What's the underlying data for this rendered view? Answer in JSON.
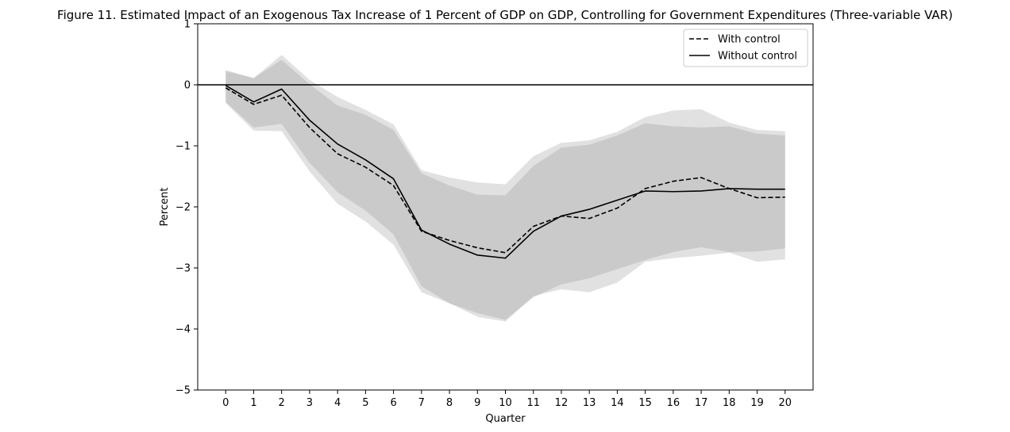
{
  "chart_data": {
    "type": "line",
    "title": "Figure 11. Estimated Impact of an Exogenous Tax Increase of 1 Percent of GDP on GDP, Controlling for Government Expenditures (Three-variable VAR)",
    "xlabel": "Quarter",
    "ylabel": "Percent",
    "xlim": [
      -1,
      21
    ],
    "ylim": [
      -5,
      1
    ],
    "x": [
      0,
      1,
      2,
      3,
      4,
      5,
      6,
      7,
      8,
      9,
      10,
      11,
      12,
      13,
      14,
      15,
      16,
      17,
      18,
      19,
      20
    ],
    "x_ticks": [
      "0",
      "1",
      "2",
      "3",
      "4",
      "5",
      "6",
      "7",
      "8",
      "9",
      "10",
      "11",
      "12",
      "13",
      "14",
      "15",
      "16",
      "17",
      "18",
      "19",
      "20"
    ],
    "y_ticks": [
      "1",
      "0",
      "−1",
      "−2",
      "−3",
      "−4",
      "−5"
    ],
    "y_tick_values": [
      1,
      0,
      -1,
      -2,
      -3,
      -4,
      -5
    ],
    "zero_line": 0,
    "grid": false,
    "legend_position": "top-right",
    "series": [
      {
        "name": "With control",
        "style": "dashed",
        "color": "#000000",
        "values": [
          -0.05,
          -0.32,
          -0.17,
          -0.7,
          -1.13,
          -1.35,
          -1.65,
          -2.4,
          -2.55,
          -2.67,
          -2.75,
          -2.32,
          -2.15,
          -2.19,
          -2.02,
          -1.7,
          -1.58,
          -1.52,
          -1.7,
          -1.85,
          -1.84
        ],
        "band_upper": [
          0.22,
          0.11,
          0.49,
          0.08,
          -0.2,
          -0.41,
          -0.65,
          -1.4,
          -1.52,
          -1.6,
          -1.63,
          -1.17,
          -0.95,
          -0.91,
          -0.77,
          -0.53,
          -0.42,
          -0.4,
          -0.62,
          -0.74,
          -0.76
        ],
        "band_lower": [
          -0.3,
          -0.75,
          -0.76,
          -1.42,
          -1.95,
          -2.24,
          -2.62,
          -3.4,
          -3.58,
          -3.8,
          -3.88,
          -3.46,
          -3.35,
          -3.4,
          -3.24,
          -2.9,
          -2.84,
          -2.8,
          -2.75,
          -2.9,
          -2.86
        ]
      },
      {
        "name": "Without control",
        "style": "solid",
        "color": "#000000",
        "values": [
          -0.01,
          -0.28,
          -0.07,
          -0.58,
          -0.97,
          -1.23,
          -1.54,
          -2.38,
          -2.61,
          -2.79,
          -2.84,
          -2.4,
          -2.15,
          -2.04,
          -1.89,
          -1.74,
          -1.75,
          -1.74,
          -1.7,
          -1.71,
          -1.71
        ],
        "band_upper": [
          0.24,
          0.11,
          0.41,
          0.01,
          -0.34,
          -0.49,
          -0.74,
          -1.45,
          -1.65,
          -1.8,
          -1.81,
          -1.33,
          -1.03,
          -0.98,
          -0.83,
          -0.63,
          -0.68,
          -0.7,
          -0.68,
          -0.8,
          -0.83
        ],
        "band_lower": [
          -0.28,
          -0.7,
          -0.64,
          -1.28,
          -1.76,
          -2.06,
          -2.45,
          -3.3,
          -3.58,
          -3.74,
          -3.85,
          -3.48,
          -3.27,
          -3.17,
          -3.02,
          -2.87,
          -2.74,
          -2.66,
          -2.74,
          -2.73,
          -2.68
        ]
      }
    ]
  }
}
